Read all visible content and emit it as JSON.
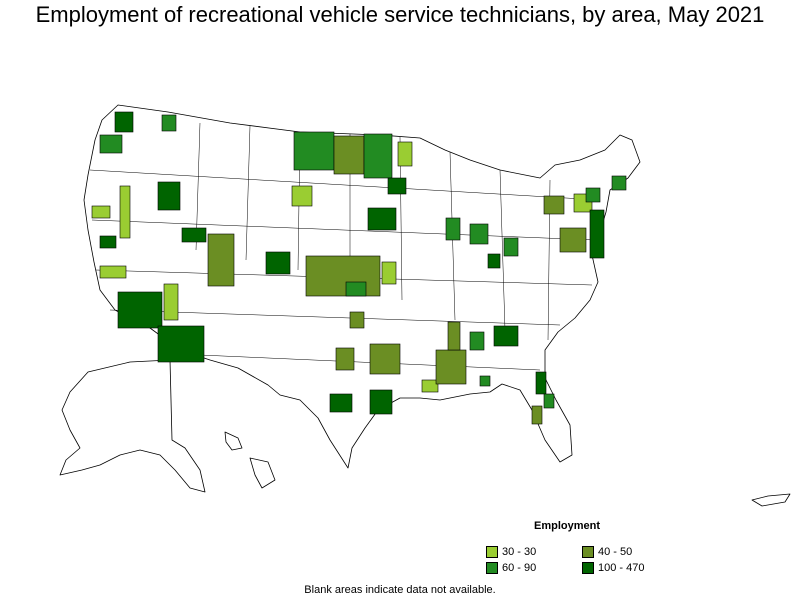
{
  "title": "Employment of recreational vehicle service technicians, by area, May 2021",
  "legend": {
    "title": "Employment",
    "items": [
      {
        "label": "30 - 30",
        "color": "#9acd32"
      },
      {
        "label": "40 - 50",
        "color": "#6b8e23"
      },
      {
        "label": "60 - 90",
        "color": "#228b22"
      },
      {
        "label": "100 - 470",
        "color": "#006400"
      }
    ]
  },
  "footnote": "Blank areas indicate data not available."
}
